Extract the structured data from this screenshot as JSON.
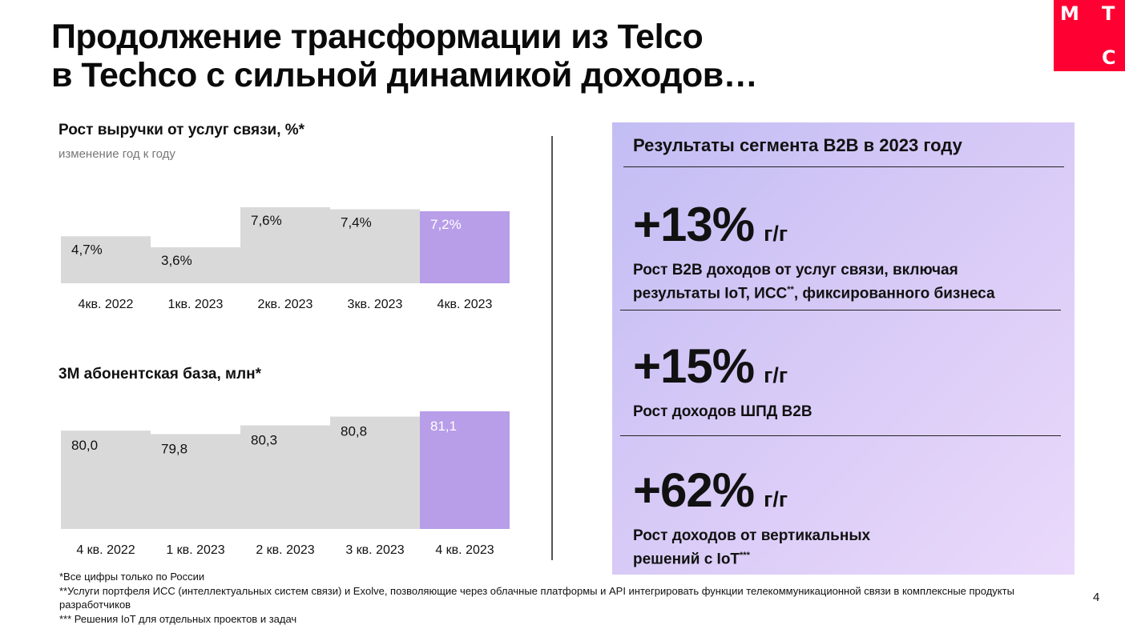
{
  "title": {
    "line1": "Продолжение трансформации из Telco",
    "line2": "в Techco с сильной динамикой доходов…"
  },
  "logo": {
    "letters": [
      "М",
      "Т",
      "С"
    ],
    "color": "#ff0032"
  },
  "colors": {
    "bar_default": "#d9d9d9",
    "bar_highlight": "#b89de9",
    "panel_start": "#c2bdf4",
    "panel_end": "#ead9fb"
  },
  "chart_data": [
    {
      "type": "bar",
      "title": "Рост выручки от услуг связи, %*",
      "subtitle": "изменение год к году",
      "categories": [
        "4кв. 2022",
        "1кв. 2023",
        "2кв. 2023",
        "3кв. 2023",
        "4кв. 2023"
      ],
      "values": [
        4.7,
        3.6,
        7.6,
        7.4,
        7.2
      ],
      "labels": [
        "4,7%",
        "3,6%",
        "7,6%",
        "7,4%",
        "7,2%"
      ],
      "highlight_index": 4,
      "ylim": [
        0,
        7.6
      ],
      "grid": false,
      "legend": "none"
    },
    {
      "type": "bar",
      "title": "3M абонентская база, млн*",
      "categories": [
        "4 кв. 2022",
        "1 кв. 2023",
        "2 кв. 2023",
        "3 кв. 2023",
        "4 кв. 2023"
      ],
      "values": [
        80.0,
        79.8,
        80.3,
        80.8,
        81.1
      ],
      "labels": [
        "80,0",
        "79,8",
        "80,3",
        "80,8",
        "81,1"
      ],
      "highlight_index": 4,
      "ylim": [
        74.4,
        81.1
      ],
      "grid": false,
      "legend": "none"
    }
  ],
  "b2b": {
    "heading": "Результаты сегмента B2B в 2023 году",
    "metrics": [
      {
        "value": "+13%",
        "unit": "г/г",
        "desc_lines": [
          "Рост B2B доходов от услуг связи, включая",
          "результаты  IoT, ИСС"
        ],
        "desc_sup": "**",
        "desc_suffix": ", фиксированного бизнеса"
      },
      {
        "value": "+15%",
        "unit": "г/г",
        "desc_lines": [
          "Рост доходов ШПД B2B"
        ]
      },
      {
        "value": "+62%",
        "unit": "г/г",
        "desc_lines": [
          "Рост доходов от вертикальных",
          "решений с IoT"
        ],
        "desc_sup": "***"
      }
    ]
  },
  "footnotes": [
    "*Все цифры только по России",
    "**Услуги портфеля ИСС (интеллектуальных систем связи) и Exolve, позволяющие через облачные платформы и API интегрировать функции телекоммуникационной связи в комплексные продукты разработчиков",
    "*** Решения IoT для отдельных проектов и задач"
  ],
  "page_number": "4"
}
